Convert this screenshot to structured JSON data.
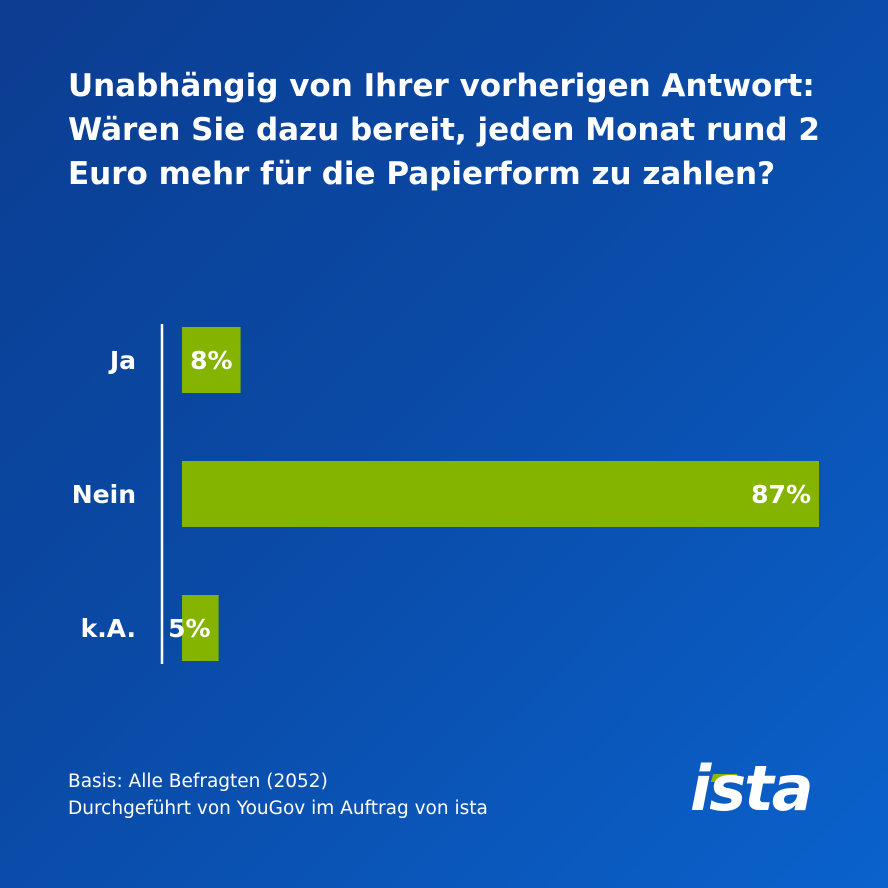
{
  "title_lines": [
    "Unabhängig von Ihrer vorherigen Antwort:",
    "Wären Sie dazu bereit, jeden Monat rund 2",
    "Euro mehr für die Papierform zu zahlen?"
  ],
  "footer": {
    "basis": "Basis: Alle Befragten (2052)",
    "source": "Durchgeführt von YouGov im Auftrag von ista"
  },
  "logo": {
    "text": "ista"
  },
  "colors": {
    "bar": "#84b300",
    "axis": "#ffffff",
    "text": "#ffffff",
    "logo_accent": "#8cb800"
  },
  "chart_data": {
    "type": "bar",
    "orientation": "horizontal",
    "categories": [
      "Ja",
      "Nein",
      "k.A."
    ],
    "values": [
      8,
      87,
      5
    ],
    "value_labels": [
      "8%",
      "87%",
      "5%"
    ],
    "unit": "%",
    "xlim": [
      0,
      87
    ],
    "title": "Unabhängig von Ihrer vorherigen Antwort: Wären Sie dazu bereit, jeden Monat rund 2 Euro mehr für die Papierform zu zahlen?",
    "xlabel": "",
    "ylabel": "",
    "grid": false,
    "legend": "none"
  }
}
